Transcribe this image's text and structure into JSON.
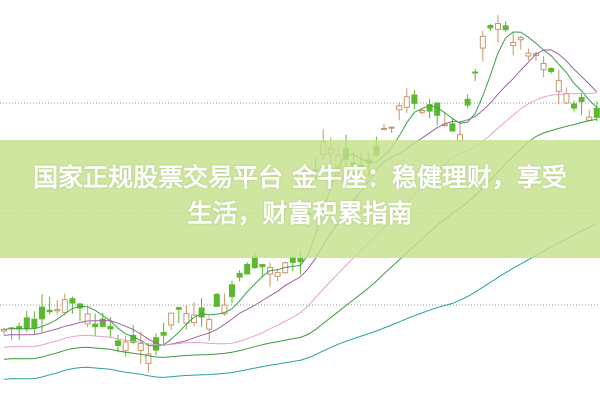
{
  "headline": "国家正规股票交易平台 金牛座：稳健理财，享受生活，财富积累指南",
  "headline_line1": "国家正规股票交易平台 金牛座：稳健理财，享受",
  "headline_line2": "生活，财富积累指南",
  "colors": {
    "band": "#c4e08c",
    "up_candle": "#c8966a",
    "down_candle": "#5cb82e",
    "ma_short": "#3aa04a",
    "ma_mid": "#a060a8",
    "ma_long": "#e8a0c8",
    "ma_longer": "#3c9a3c",
    "ma_longest": "#2aa0a0",
    "grid": "#999999"
  },
  "chart_type": "candlestick with moving averages",
  "grid": true
}
